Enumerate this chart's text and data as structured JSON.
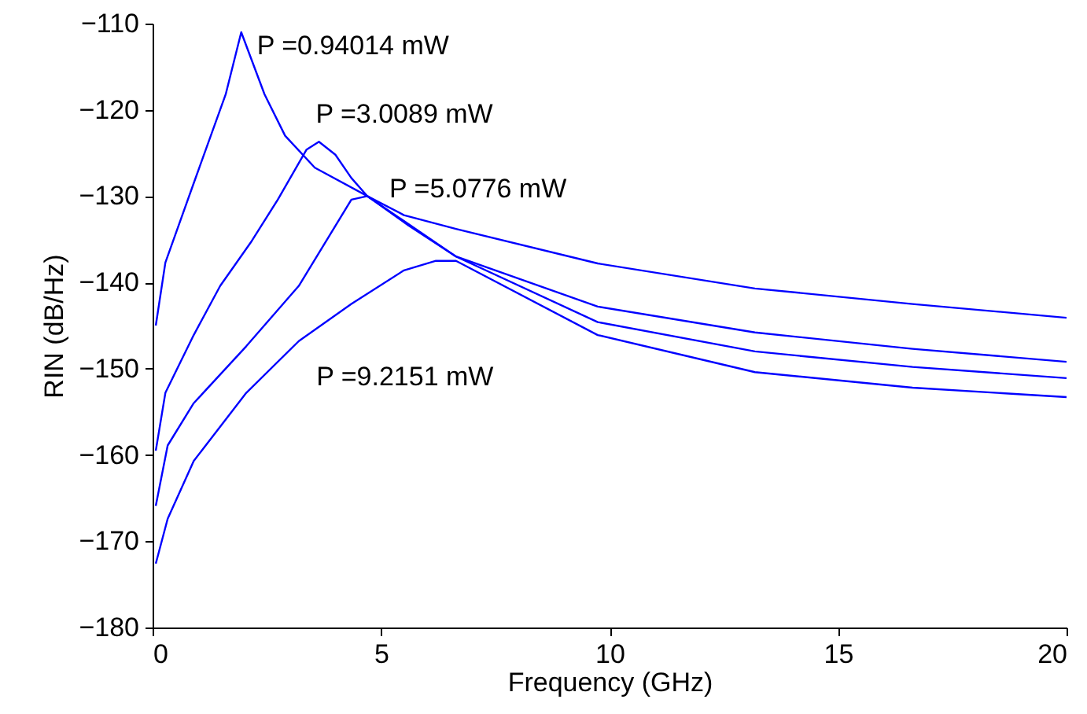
{
  "chart_data": {
    "type": "line",
    "xlabel": "Frequency (GHz)",
    "ylabel": "RIN (dB/Hz)",
    "xlim": [
      0,
      20
    ],
    "ylim": [
      -180,
      -110
    ],
    "xticks": [
      0,
      5,
      10,
      15,
      20
    ],
    "yticks": [
      -180,
      -170,
      -160,
      -150,
      -140,
      -130,
      -120,
      -110
    ],
    "grid": false,
    "marker": "none",
    "line_style": "solid",
    "series": [
      {
        "name": "P =0.94014 mW",
        "color": "#0000ff",
        "x": [
          0.07,
          0.28,
          0.9,
          1.6,
          1.94,
          2.45,
          2.9,
          3.55,
          4.7,
          6.64,
          9.74,
          13.18,
          16.63,
          20
        ],
        "values": [
          -145,
          -137.7,
          -128.5,
          -118.2,
          -111,
          -118.2,
          -123,
          -126.7,
          -130,
          -137,
          -144.6,
          -148,
          -149.8,
          -151.1
        ]
      },
      {
        "name": "P =3.0089 mW",
        "color": "#0000ff",
        "x": [
          0.07,
          0.28,
          0.9,
          1.48,
          2.17,
          2.74,
          3.37,
          3.64,
          4.0,
          4.35,
          4.7,
          5.6,
          6.64,
          9.74,
          13.18,
          16.63,
          20
        ],
        "values": [
          -159.5,
          -152.8,
          -146.1,
          -140.4,
          -135.2,
          -130.4,
          -124.6,
          -123.7,
          -125.2,
          -127.9,
          -130,
          -133.4,
          -137,
          -142.8,
          -145.8,
          -147.7,
          -149.2
        ]
      },
      {
        "name": "P =5.0776 mW",
        "color": "#0000ff",
        "x": [
          0.07,
          0.33,
          0.9,
          2.05,
          3.2,
          4.35,
          4.7,
          5.5,
          6.64,
          9.74,
          13.18,
          16.63,
          20
        ],
        "values": [
          -165.9,
          -158.9,
          -154,
          -147.4,
          -140.4,
          -130.4,
          -130,
          -132.2,
          -133.8,
          -137.8,
          -140.7,
          -142.5,
          -144.1
        ]
      },
      {
        "name": "P =9.2151 mW",
        "color": "#0000ff",
        "x": [
          0.07,
          0.33,
          0.9,
          2.05,
          3.2,
          4.35,
          5.5,
          6.2,
          6.64,
          9.74,
          13.18,
          16.63,
          20
        ],
        "values": [
          -172.6,
          -167.4,
          -160.7,
          -152.8,
          -146.8,
          -142.5,
          -138.6,
          -137.5,
          -137.5,
          -146.1,
          -150.4,
          -152.2,
          -153.3
        ]
      }
    ]
  }
}
